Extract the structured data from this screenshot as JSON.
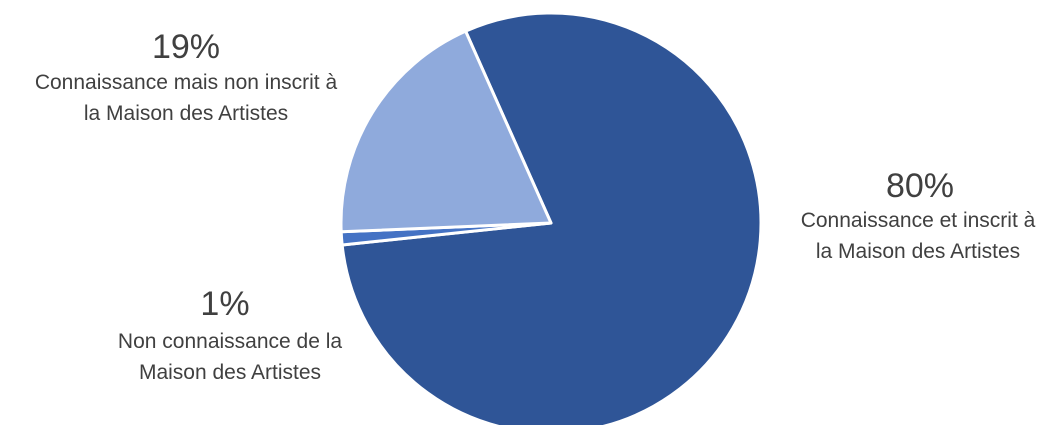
{
  "chart_data": {
    "type": "pie",
    "title": "",
    "colors": [
      "#2F5597",
      "#4472C4",
      "#8FAADC"
    ],
    "slices": [
      {
        "percent_label": "80%",
        "label_line1": "Connaissance et inscrit à",
        "label_line2": "la Maison des Artistes",
        "value": 80
      },
      {
        "percent_label": "1%",
        "label_line1": "Non connaissance de la",
        "label_line2": "Maison des Artistes",
        "value": 1
      },
      {
        "percent_label": "19%",
        "label_line1": "Connaissance mais non inscrit à",
        "label_line2": "la Maison des Artistes",
        "value": 19
      }
    ]
  }
}
